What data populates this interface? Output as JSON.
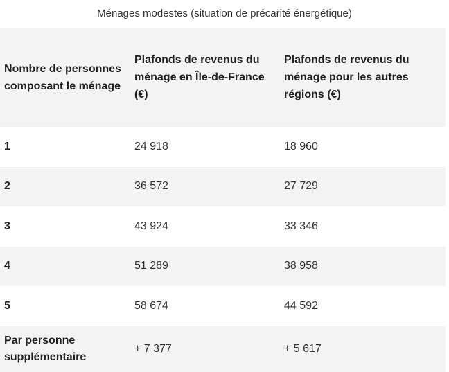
{
  "caption": "Ménages modestes (situation de précarité énergétique)",
  "table": {
    "headers": [
      "Nombre de personnes composant le ménage",
      "Plafonds de revenus du ménage en Île-de-France (€)",
      "Plafonds de revenus du ménage pour les autres régions (€)"
    ],
    "rows": [
      [
        "1",
        "24 918",
        "18 960"
      ],
      [
        "2",
        "36 572",
        "27 729"
      ],
      [
        "3",
        "43 924",
        "33 346"
      ],
      [
        "4",
        "51 289",
        "38 958"
      ],
      [
        "5",
        "58 674",
        "44 592"
      ],
      [
        "Par personne supplémentaire",
        "+ 7 377",
        "+ 5 617"
      ]
    ]
  },
  "colors": {
    "header_background": "#f3f3f3",
    "striped_row_background": "#f3f3f3",
    "plain_row_background": "#ffffff"
  }
}
